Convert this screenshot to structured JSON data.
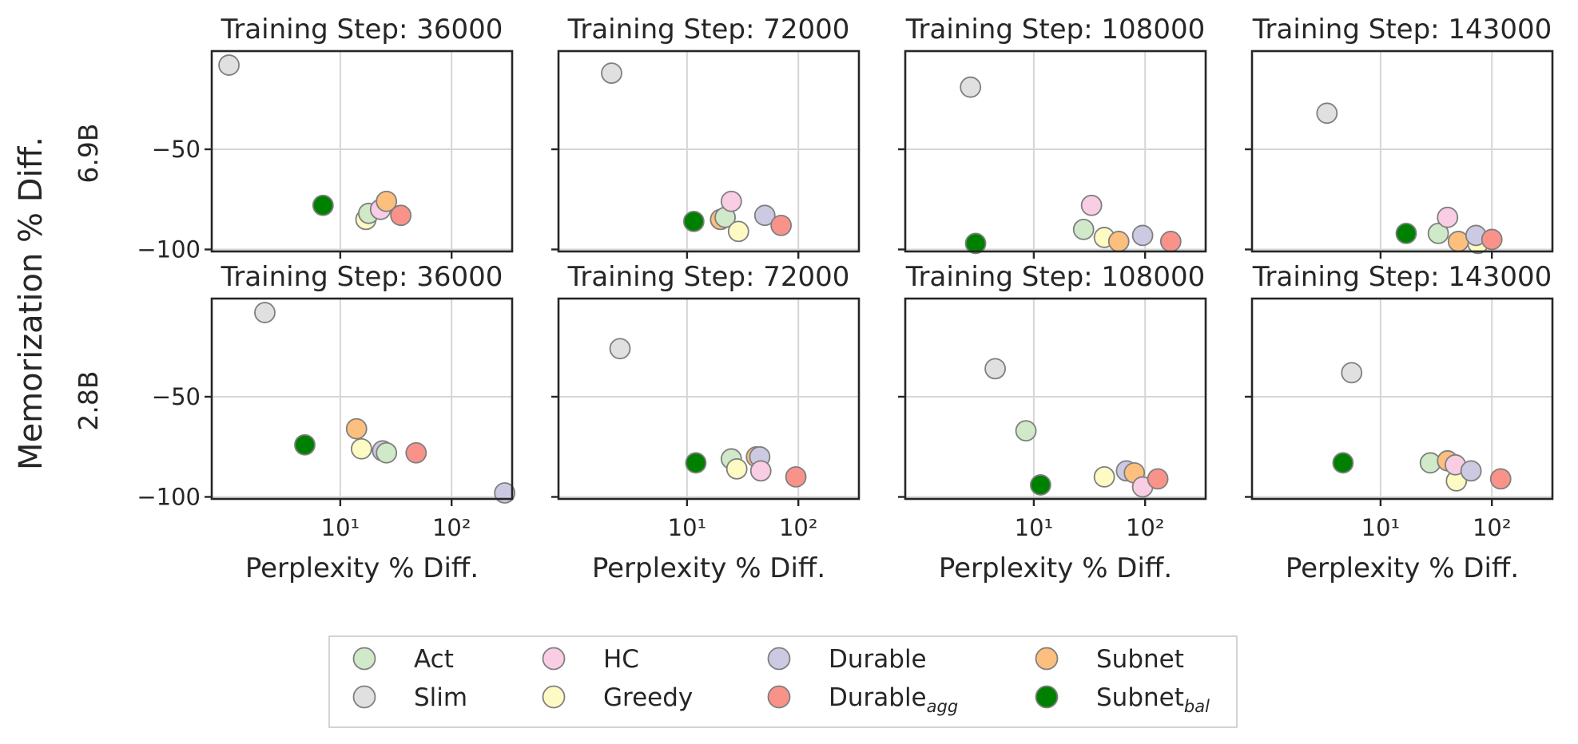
{
  "figure": {
    "y_label": "Memorization % Diff.",
    "x_label": "Perplexity % Diff.",
    "row_labels": [
      "6.9B",
      "2.8B"
    ],
    "column_titles": [
      "Training Step: 36000",
      "Training Step: 72000",
      "Training Step: 108000",
      "Training Step: 143000"
    ]
  },
  "legend": {
    "items": [
      {
        "key": "act",
        "label": "Act",
        "sub": "",
        "color": "#cfe9c9"
      },
      {
        "key": "slim",
        "label": "Slim",
        "sub": "",
        "color": "#e0e0e0"
      },
      {
        "key": "hc",
        "label": "HC",
        "sub": "",
        "color": "#f9cde4"
      },
      {
        "key": "greedy",
        "label": "Greedy",
        "sub": "",
        "color": "#fdfbc3"
      },
      {
        "key": "durable",
        "label": "Durable",
        "sub": "",
        "color": "#cccae3"
      },
      {
        "key": "durable_agg",
        "label": "Durable",
        "sub": "agg",
        "color": "#f9938a"
      },
      {
        "key": "subnet",
        "label": "Subnet",
        "sub": "",
        "color": "#fcbf7d"
      },
      {
        "key": "subnet_bal",
        "label": "Subnet",
        "sub": "bal",
        "color": "#008000"
      }
    ]
  },
  "chart_data": [
    {
      "type": "scatter",
      "row": "6.9B",
      "title": "Training Step: 36000",
      "xscale": "log",
      "xlim": [
        0.7,
        350
      ],
      "ylim": [
        -101,
        -1
      ],
      "xticks": [
        "10¹",
        "10²"
      ],
      "yticks": [
        "−50",
        "−100"
      ],
      "points": [
        {
          "series": "slim",
          "x": 1.0,
          "y": -8
        },
        {
          "series": "subnet_bal",
          "x": 7.0,
          "y": -78
        },
        {
          "series": "greedy",
          "x": 17,
          "y": -85
        },
        {
          "series": "act",
          "x": 18,
          "y": -82
        },
        {
          "series": "hc",
          "x": 23,
          "y": -80
        },
        {
          "series": "subnet",
          "x": 26,
          "y": -76
        },
        {
          "series": "durable_agg",
          "x": 35,
          "y": -83
        }
      ]
    },
    {
      "type": "scatter",
      "row": "6.9B",
      "title": "Training Step: 72000",
      "xscale": "log",
      "xlim": [
        0.7,
        350
      ],
      "ylim": [
        -101,
        -1
      ],
      "xticks": [
        "10¹",
        "10²"
      ],
      "yticks": [
        "−50",
        "−100"
      ],
      "points": [
        {
          "series": "slim",
          "x": 2.1,
          "y": -12
        },
        {
          "series": "subnet_bal",
          "x": 11.5,
          "y": -86
        },
        {
          "series": "subnet",
          "x": 20,
          "y": -85
        },
        {
          "series": "act",
          "x": 22,
          "y": -84
        },
        {
          "series": "hc",
          "x": 25,
          "y": -76
        },
        {
          "series": "greedy",
          "x": 29,
          "y": -91
        },
        {
          "series": "durable",
          "x": 50,
          "y": -83
        },
        {
          "series": "durable_agg",
          "x": 70,
          "y": -88
        }
      ]
    },
    {
      "type": "scatter",
      "row": "6.9B",
      "title": "Training Step: 108000",
      "xscale": "log",
      "xlim": [
        0.7,
        350
      ],
      "ylim": [
        -101,
        -1
      ],
      "xticks": [
        "10¹",
        "10²"
      ],
      "yticks": [
        "−50",
        "−100"
      ],
      "points": [
        {
          "series": "slim",
          "x": 2.7,
          "y": -19
        },
        {
          "series": "subnet_bal",
          "x": 3.0,
          "y": -97
        },
        {
          "series": "act",
          "x": 28,
          "y": -90
        },
        {
          "series": "hc",
          "x": 33,
          "y": -78
        },
        {
          "series": "greedy",
          "x": 43,
          "y": -94
        },
        {
          "series": "subnet",
          "x": 58,
          "y": -96
        },
        {
          "series": "durable",
          "x": 95,
          "y": -93
        },
        {
          "series": "durable_agg",
          "x": 170,
          "y": -96
        }
      ]
    },
    {
      "type": "scatter",
      "row": "6.9B",
      "title": "Training Step: 143000",
      "xscale": "log",
      "xlim": [
        0.7,
        350
      ],
      "ylim": [
        -101,
        -1
      ],
      "xticks": [
        "10¹",
        "10²"
      ],
      "yticks": [
        "−50",
        "−100"
      ],
      "points": [
        {
          "series": "slim",
          "x": 3.3,
          "y": -32
        },
        {
          "series": "subnet_bal",
          "x": 17,
          "y": -92
        },
        {
          "series": "act",
          "x": 33,
          "y": -92
        },
        {
          "series": "hc",
          "x": 40,
          "y": -84
        },
        {
          "series": "greedy",
          "x": 75,
          "y": -97
        },
        {
          "series": "subnet",
          "x": 50,
          "y": -96
        },
        {
          "series": "durable",
          "x": 72,
          "y": -93
        },
        {
          "series": "durable_agg",
          "x": 100,
          "y": -95
        }
      ]
    },
    {
      "type": "scatter",
      "row": "2.8B",
      "title": "Training Step: 36000",
      "xscale": "log",
      "xlim": [
        0.7,
        350
      ],
      "ylim": [
        -101,
        -1
      ],
      "xticks": [
        "10¹",
        "10²"
      ],
      "yticks": [
        "−50",
        "−100"
      ],
      "points": [
        {
          "series": "slim",
          "x": 2.1,
          "y": -8
        },
        {
          "series": "subnet_bal",
          "x": 4.8,
          "y": -74
        },
        {
          "series": "subnet",
          "x": 14,
          "y": -66
        },
        {
          "series": "greedy",
          "x": 15.5,
          "y": -76
        },
        {
          "series": "durable",
          "x": 24,
          "y": -77
        },
        {
          "series": "act",
          "x": 26,
          "y": -78
        },
        {
          "series": "durable_agg",
          "x": 48,
          "y": -78
        },
        {
          "series": "durable",
          "x": 300,
          "y": -98
        }
      ]
    },
    {
      "type": "scatter",
      "row": "2.8B",
      "title": "Training Step: 72000",
      "xscale": "log",
      "xlim": [
        0.7,
        350
      ],
      "ylim": [
        -101,
        -1
      ],
      "xticks": [
        "10¹",
        "10²"
      ],
      "yticks": [
        "−50",
        "−100"
      ],
      "points": [
        {
          "series": "slim",
          "x": 2.5,
          "y": -26
        },
        {
          "series": "subnet_bal",
          "x": 12,
          "y": -83
        },
        {
          "series": "act",
          "x": 25,
          "y": -81
        },
        {
          "series": "greedy",
          "x": 28,
          "y": -86
        },
        {
          "series": "subnet",
          "x": 42,
          "y": -80
        },
        {
          "series": "durable",
          "x": 45,
          "y": -80
        },
        {
          "series": "hc",
          "x": 46,
          "y": -87
        },
        {
          "series": "durable_agg",
          "x": 95,
          "y": -90
        }
      ]
    },
    {
      "type": "scatter",
      "row": "2.8B",
      "title": "Training Step: 108000",
      "xscale": "log",
      "xlim": [
        0.7,
        350
      ],
      "ylim": [
        -101,
        -1
      ],
      "xticks": [
        "10¹",
        "10²"
      ],
      "yticks": [
        "−50",
        "−100"
      ],
      "points": [
        {
          "series": "slim",
          "x": 4.5,
          "y": -36
        },
        {
          "series": "act",
          "x": 8.5,
          "y": -67
        },
        {
          "series": "subnet_bal",
          "x": 11.5,
          "y": -94
        },
        {
          "series": "greedy",
          "x": 43,
          "y": -90
        },
        {
          "series": "durable",
          "x": 68,
          "y": -87
        },
        {
          "series": "subnet",
          "x": 80,
          "y": -88
        },
        {
          "series": "hc",
          "x": 95,
          "y": -95
        },
        {
          "series": "durable_agg",
          "x": 130,
          "y": -91
        }
      ]
    },
    {
      "type": "scatter",
      "row": "2.8B",
      "title": "Training Step: 143000",
      "xscale": "log",
      "xlim": [
        0.7,
        350
      ],
      "ylim": [
        -101,
        -1
      ],
      "xticks": [
        "10¹",
        "10²"
      ],
      "yticks": [
        "−50",
        "−100"
      ],
      "points": [
        {
          "series": "slim",
          "x": 5.5,
          "y": -38
        },
        {
          "series": "subnet_bal",
          "x": 4.6,
          "y": -83
        },
        {
          "series": "act",
          "x": 28,
          "y": -83
        },
        {
          "series": "subnet",
          "x": 40,
          "y": -82
        },
        {
          "series": "greedy",
          "x": 48,
          "y": -92
        },
        {
          "series": "hc",
          "x": 47,
          "y": -84
        },
        {
          "series": "durable",
          "x": 65,
          "y": -87
        },
        {
          "series": "durable_agg",
          "x": 120,
          "y": -91
        }
      ]
    }
  ]
}
